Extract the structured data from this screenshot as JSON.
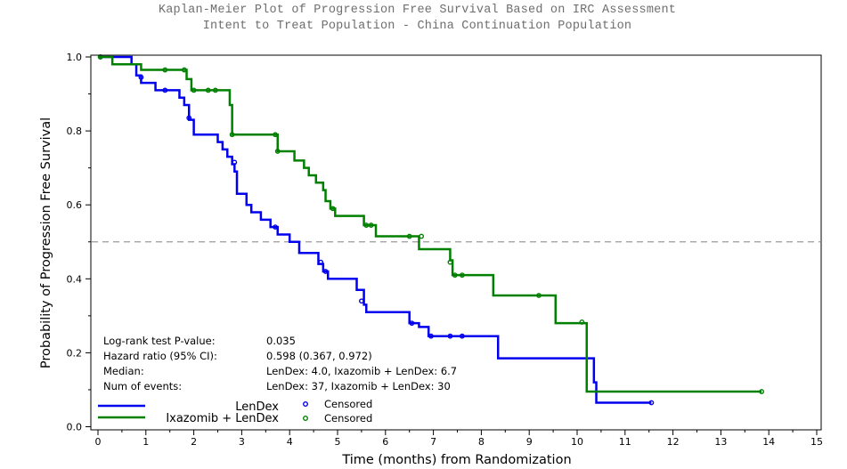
{
  "chart_data": {
    "type": "line",
    "subtype": "kaplan-meier step plot",
    "title": "Kaplan-Meier Plot of Progression Free Survival Based on IRC Assessment",
    "subtitle": "Intent to Treat Population - China Continuation Population",
    "xlabel": "Time (months) from Randomization",
    "ylabel": "Probability of Progression Free Survival",
    "xlim": [
      0,
      15
    ],
    "ylim": [
      0,
      1
    ],
    "xticks": [
      0,
      1,
      2,
      3,
      4,
      5,
      6,
      7,
      8,
      9,
      10,
      11,
      12,
      13,
      14,
      15
    ],
    "yticks": [
      "0.0",
      "0.2",
      "0.4",
      "0.6",
      "0.8",
      "1.0"
    ],
    "reference_line": {
      "y": 0.5,
      "style": "dashed"
    },
    "colors": {
      "lendex": "#0000ee",
      "ixazomib": "#008000",
      "reference": "#999999"
    },
    "series": [
      {
        "name": "LenDex",
        "steps": [
          [
            0,
            1.0
          ],
          [
            0.7,
            0.98
          ],
          [
            0.8,
            0.95
          ],
          [
            0.9,
            0.93
          ],
          [
            1.2,
            0.91
          ],
          [
            1.7,
            0.89
          ],
          [
            1.8,
            0.87
          ],
          [
            1.9,
            0.83
          ],
          [
            2.0,
            0.79
          ],
          [
            2.5,
            0.77
          ],
          [
            2.6,
            0.75
          ],
          [
            2.7,
            0.73
          ],
          [
            2.8,
            0.71
          ],
          [
            2.85,
            0.69
          ],
          [
            2.9,
            0.63
          ],
          [
            3.1,
            0.6
          ],
          [
            3.2,
            0.58
          ],
          [
            3.4,
            0.56
          ],
          [
            3.6,
            0.54
          ],
          [
            3.75,
            0.52
          ],
          [
            4.0,
            0.5
          ],
          [
            4.2,
            0.47
          ],
          [
            4.6,
            0.44
          ],
          [
            4.7,
            0.42
          ],
          [
            4.8,
            0.4
          ],
          [
            5.4,
            0.37
          ],
          [
            5.55,
            0.33
          ],
          [
            5.6,
            0.31
          ],
          [
            6.5,
            0.28
          ],
          [
            6.7,
            0.27
          ],
          [
            6.9,
            0.245
          ],
          [
            8.35,
            0.185
          ],
          [
            10.35,
            0.12
          ],
          [
            10.4,
            0.065
          ]
        ],
        "end": 11.55,
        "censored": [
          [
            0.05,
            1.0
          ],
          [
            0.9,
            0.945
          ],
          [
            1.4,
            0.91
          ],
          [
            1.9,
            0.835
          ],
          [
            2.85,
            0.715
          ],
          [
            3.7,
            0.54
          ],
          [
            4.65,
            0.445
          ],
          [
            4.75,
            0.42
          ],
          [
            5.5,
            0.34
          ],
          [
            6.55,
            0.28
          ],
          [
            6.95,
            0.245
          ],
          [
            7.35,
            0.245
          ],
          [
            7.6,
            0.245
          ],
          [
            11.55,
            0.065
          ]
        ]
      },
      {
        "name": "Ixazomib + LenDex",
        "steps": [
          [
            0,
            1.0
          ],
          [
            0.3,
            0.98
          ],
          [
            0.9,
            0.965
          ],
          [
            1.85,
            0.94
          ],
          [
            1.95,
            0.91
          ],
          [
            2.75,
            0.87
          ],
          [
            2.8,
            0.79
          ],
          [
            3.75,
            0.745
          ],
          [
            4.1,
            0.72
          ],
          [
            4.3,
            0.7
          ],
          [
            4.4,
            0.68
          ],
          [
            4.55,
            0.66
          ],
          [
            4.7,
            0.64
          ],
          [
            4.75,
            0.61
          ],
          [
            4.85,
            0.59
          ],
          [
            4.95,
            0.57
          ],
          [
            5.55,
            0.545
          ],
          [
            5.8,
            0.515
          ],
          [
            6.7,
            0.48
          ],
          [
            7.35,
            0.45
          ],
          [
            7.4,
            0.41
          ],
          [
            8.25,
            0.355
          ],
          [
            9.55,
            0.28
          ],
          [
            10.2,
            0.095
          ]
        ],
        "end": 13.85,
        "censored": [
          [
            0.05,
            1.0
          ],
          [
            1.4,
            0.965
          ],
          [
            1.8,
            0.965
          ],
          [
            2.0,
            0.91
          ],
          [
            2.3,
            0.91
          ],
          [
            2.45,
            0.91
          ],
          [
            2.8,
            0.79
          ],
          [
            3.7,
            0.79
          ],
          [
            3.75,
            0.745
          ],
          [
            4.9,
            0.59
          ],
          [
            5.6,
            0.545
          ],
          [
            5.7,
            0.545
          ],
          [
            6.5,
            0.515
          ],
          [
            6.75,
            0.515
          ],
          [
            7.35,
            0.445
          ],
          [
            7.45,
            0.41
          ],
          [
            7.6,
            0.41
          ],
          [
            9.2,
            0.355
          ],
          [
            10.1,
            0.283
          ],
          [
            13.85,
            0.095
          ]
        ]
      }
    ],
    "stats": [
      {
        "label": "Log-rank test P-value:",
        "value": "0.035"
      },
      {
        "label": "Hazard ratio (95% CI):",
        "value": "0.598 (0.367, 0.972)"
      },
      {
        "label": "Median:",
        "value": "LenDex: 4.0, Ixazomib + LenDex: 6.7"
      },
      {
        "label": "Num of events:",
        "value": "LenDex: 37, Ixazomib + LenDex: 30"
      }
    ],
    "legend": {
      "entries": [
        {
          "label": "LenDex",
          "censored_label": "Censored"
        },
        {
          "label": "Ixazomib + LenDex",
          "censored_label": "Censored"
        }
      ]
    }
  }
}
